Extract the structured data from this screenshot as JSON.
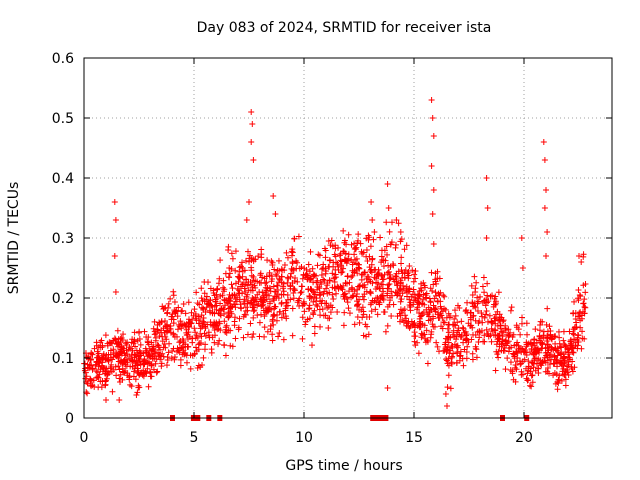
{
  "chart_data": {
    "type": "scatter",
    "title": "Day 083 of 2024, SRMTID for receiver ista",
    "xlabel": "GPS time / hours",
    "ylabel": "SRMTID / TECUs",
    "xlim": [
      0,
      24
    ],
    "ylim": [
      0,
      0.6
    ],
    "grid": true,
    "x_ticks": [
      0,
      5,
      10,
      15,
      20
    ],
    "x_tick_labels": [
      "0",
      "5",
      "10",
      "15",
      "20"
    ],
    "y_ticks": [
      0,
      0.1,
      0.2,
      0.3,
      0.4,
      0.5,
      0.6
    ],
    "y_tick_labels": [
      "0",
      "0.1",
      "0.2",
      "0.3",
      "0.4",
      "0.5",
      "0.6"
    ],
    "marker": "+",
    "color": "#ff0000",
    "series": [
      {
        "name": "SRMTID",
        "trend": [
          [
            0.0,
            0.09
          ],
          [
            0.5,
            0.08
          ],
          [
            1.0,
            0.09
          ],
          [
            1.5,
            0.11
          ],
          [
            2.0,
            0.1
          ],
          [
            2.5,
            0.09
          ],
          [
            3.0,
            0.1
          ],
          [
            3.5,
            0.13
          ],
          [
            4.0,
            0.16
          ],
          [
            4.5,
            0.13
          ],
          [
            5.0,
            0.14
          ],
          [
            5.5,
            0.16
          ],
          [
            6.0,
            0.18
          ],
          [
            6.5,
            0.19
          ],
          [
            7.0,
            0.2
          ],
          [
            7.5,
            0.21
          ],
          [
            8.0,
            0.21
          ],
          [
            8.5,
            0.19
          ],
          [
            9.0,
            0.21
          ],
          [
            9.5,
            0.23
          ],
          [
            10.0,
            0.22
          ],
          [
            10.5,
            0.2
          ],
          [
            11.0,
            0.22
          ],
          [
            11.5,
            0.24
          ],
          [
            12.0,
            0.24
          ],
          [
            12.5,
            0.23
          ],
          [
            13.0,
            0.22
          ],
          [
            13.5,
            0.23
          ],
          [
            14.0,
            0.25
          ],
          [
            14.5,
            0.22
          ],
          [
            15.0,
            0.18
          ],
          [
            15.5,
            0.17
          ],
          [
            16.0,
            0.2
          ],
          [
            16.5,
            0.12
          ],
          [
            17.0,
            0.13
          ],
          [
            17.5,
            0.16
          ],
          [
            18.0,
            0.17
          ],
          [
            18.5,
            0.17
          ],
          [
            19.0,
            0.13
          ],
          [
            19.5,
            0.12
          ],
          [
            20.0,
            0.1
          ],
          [
            20.5,
            0.1
          ],
          [
            21.0,
            0.12
          ],
          [
            21.5,
            0.1
          ],
          [
            22.0,
            0.09
          ],
          [
            22.5,
            0.17
          ],
          [
            22.8,
            0.2
          ]
        ],
        "spikes": [
          [
            1.4,
            0.36
          ],
          [
            1.45,
            0.33
          ],
          [
            1.4,
            0.27
          ],
          [
            1.45,
            0.21
          ],
          [
            6.55,
            0.28
          ],
          [
            6.6,
            0.25
          ],
          [
            7.4,
            0.33
          ],
          [
            7.5,
            0.36
          ],
          [
            7.6,
            0.46
          ],
          [
            7.65,
            0.49
          ],
          [
            7.6,
            0.51
          ],
          [
            7.7,
            0.43
          ],
          [
            8.6,
            0.37
          ],
          [
            8.7,
            0.34
          ],
          [
            13.05,
            0.36
          ],
          [
            13.1,
            0.33
          ],
          [
            13.2,
            0.31
          ],
          [
            13.8,
            0.39
          ],
          [
            13.85,
            0.35
          ],
          [
            14.2,
            0.33
          ],
          [
            14.4,
            0.31
          ],
          [
            15.8,
            0.53
          ],
          [
            15.85,
            0.5
          ],
          [
            15.9,
            0.47
          ],
          [
            15.8,
            0.42
          ],
          [
            15.9,
            0.38
          ],
          [
            15.85,
            0.34
          ],
          [
            15.9,
            0.29
          ],
          [
            18.3,
            0.4
          ],
          [
            18.35,
            0.35
          ],
          [
            18.3,
            0.3
          ],
          [
            19.9,
            0.3
          ],
          [
            19.95,
            0.25
          ],
          [
            20.9,
            0.46
          ],
          [
            20.95,
            0.43
          ],
          [
            21.0,
            0.38
          ],
          [
            20.95,
            0.35
          ],
          [
            21.05,
            0.31
          ],
          [
            21.0,
            0.27
          ],
          [
            22.5,
            0.27
          ],
          [
            22.6,
            0.26
          ],
          [
            13.8,
            0.05
          ],
          [
            16.5,
            0.02
          ],
          [
            16.45,
            0.04
          ],
          [
            1.0,
            0.03
          ],
          [
            1.6,
            0.03
          ],
          [
            0.1,
            0.06
          ]
        ]
      }
    ],
    "gap_markers_x": [
      4.0,
      4.95,
      5.05,
      5.15,
      5.65,
      6.15,
      13.1,
      13.2,
      13.3,
      13.4,
      13.5,
      13.6,
      13.7,
      19.0,
      20.1
    ]
  }
}
